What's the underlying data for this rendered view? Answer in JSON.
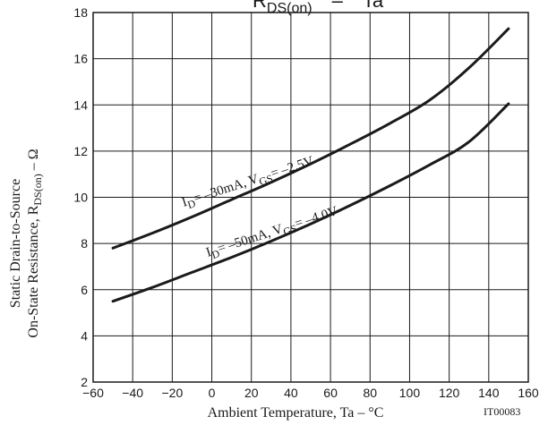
{
  "chart_data": {
    "type": "line",
    "title": {
      "main": "R",
      "sub": "DS(on)",
      "dash": "–",
      "param": "Ta"
    },
    "xlabel": "Ambient Temperature, Ta  –  °C",
    "ylabel": {
      "line1": "Static Drain-to-Source",
      "line2_pre": "On-State Resistance, R",
      "line2_sub": "DS(on)",
      "line2_post": "  –  Ω"
    },
    "xlim": [
      -60,
      160
    ],
    "ylim": [
      2,
      18
    ],
    "xticks": [
      "-60",
      "-40",
      "-20",
      "0",
      "20",
      "40",
      "60",
      "80",
      "100",
      "120",
      "140",
      "160"
    ],
    "yticks": [
      "2",
      "4",
      "6",
      "8",
      "10",
      "12",
      "14",
      "16",
      "18"
    ],
    "grid": true,
    "series": [
      {
        "name": "ID= –30mA, VGS= –2.5V",
        "label": {
          "a": "I",
          "b": "D",
          "c": "= –30mA, V",
          "d": "GS",
          "e": "= –2.5V"
        },
        "x": [
          -50,
          -30,
          -10,
          10,
          30,
          50,
          70,
          90,
          110,
          130,
          150
        ],
        "y": [
          7.8,
          8.45,
          9.15,
          9.9,
          10.65,
          11.45,
          12.3,
          13.2,
          14.2,
          15.6,
          17.3
        ]
      },
      {
        "name": "ID= –50mA, VGS= –4.0V",
        "label": {
          "a": "I",
          "b": "D",
          "c": "= –50mA, V",
          "d": "GS",
          "e": "= –4.0V"
        },
        "x": [
          -50,
          -30,
          -10,
          10,
          30,
          50,
          70,
          90,
          110,
          130,
          150
        ],
        "y": [
          5.5,
          6.1,
          6.75,
          7.4,
          8.1,
          8.85,
          9.65,
          10.5,
          11.4,
          12.4,
          14.05
        ]
      }
    ],
    "code": "IT00083"
  }
}
